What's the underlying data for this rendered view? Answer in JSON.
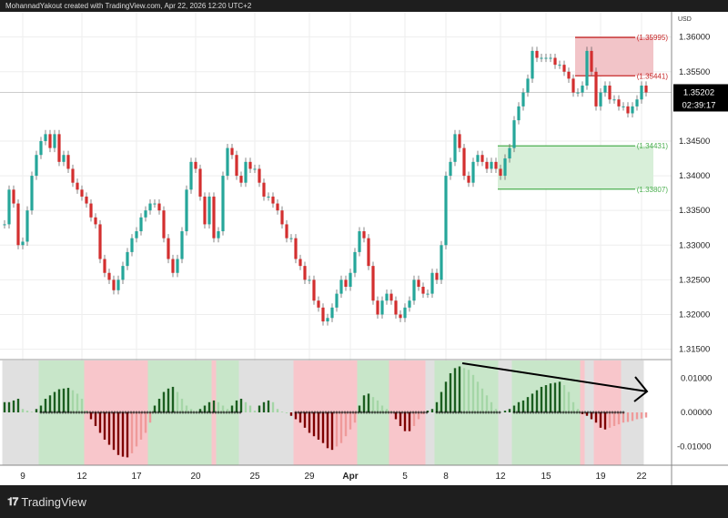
{
  "header": {
    "credit": "MohannadYakout created with TradingView.com, Apr 22, 2026 12:20 UTC+2"
  },
  "footer": {
    "brand": "TradingView",
    "logo_icon": "tradingview-logo-icon"
  },
  "chart_data": {
    "type": "candlestick",
    "currency": "USD",
    "price_axis": {
      "ticks": [
        "1.36000",
        "1.35500",
        "1.34500",
        "1.34000",
        "1.33500",
        "1.33000",
        "1.32500",
        "1.32000",
        "1.31500"
      ],
      "range": [
        1.3135,
        1.3614
      ]
    },
    "time_axis": {
      "ticks": [
        "9",
        "12",
        "17",
        "20",
        "25",
        "29",
        "Apr",
        "5",
        "8",
        "12",
        "15",
        "19",
        "22"
      ],
      "tick_bars": [
        4,
        17,
        29,
        42,
        55,
        67,
        76,
        88,
        97,
        109,
        119,
        131,
        140
      ]
    },
    "last_price": "1.35202",
    "countdown": "02:39:17",
    "colors": {
      "up": "#26a69a",
      "down": "#d32f2f",
      "zone_red": "#f8c6cb",
      "zone_green": "#c8e6c9",
      "zone_gray": "#e0e0e0"
    },
    "closes": [
      1.333,
      1.338,
      1.336,
      1.33,
      1.3305,
      1.335,
      1.34,
      1.343,
      1.345,
      1.346,
      1.344,
      1.346,
      1.342,
      1.343,
      1.341,
      1.339,
      1.338,
      1.337,
      1.336,
      1.334,
      1.333,
      1.328,
      1.326,
      1.325,
      1.3235,
      1.325,
      1.327,
      1.329,
      1.331,
      1.332,
      1.334,
      1.335,
      1.336,
      1.336,
      1.335,
      1.331,
      1.328,
      1.326,
      1.328,
      1.332,
      1.338,
      1.342,
      1.341,
      1.337,
      1.333,
      1.337,
      1.331,
      1.332,
      1.34,
      1.344,
      1.343,
      1.34,
      1.339,
      1.342,
      1.341,
      1.341,
      1.339,
      1.337,
      1.337,
      1.336,
      1.335,
      1.333,
      1.331,
      1.331,
      1.328,
      1.327,
      1.325,
      1.325,
      1.322,
      1.321,
      1.319,
      1.3195,
      1.321,
      1.323,
      1.325,
      1.324,
      1.326,
      1.329,
      1.332,
      1.331,
      1.327,
      1.322,
      1.32,
      1.322,
      1.323,
      1.322,
      1.32,
      1.3195,
      1.321,
      1.322,
      1.325,
      1.324,
      1.323,
      1.323,
      1.326,
      1.325,
      1.33,
      1.34,
      1.342,
      1.346,
      1.344,
      1.34,
      1.339,
      1.342,
      1.343,
      1.342,
      1.341,
      1.342,
      1.341,
      1.34,
      1.3425,
      1.344,
      1.348,
      1.35,
      1.352,
      1.354,
      1.358,
      1.357,
      1.357,
      1.357,
      1.357,
      1.356,
      1.356,
      1.355,
      1.354,
      1.352,
      1.352,
      1.353,
      1.358,
      1.355,
      1.35,
      1.352,
      1.353,
      1.351,
      1.351,
      1.35,
      1.35,
      1.349,
      1.35,
      1.351,
      1.353,
      1.35202
    ],
    "zones": [
      {
        "name": "supply",
        "top": 1.35995,
        "bottom": 1.35441,
        "top_label": "(1.35995)",
        "bottom_label": "(1.35441)",
        "start_bar": 126,
        "color": "#f2c4c8",
        "line": "#c62828"
      },
      {
        "name": "demand",
        "top": 1.34431,
        "bottom": 1.33807,
        "top_label": "(1.34431)",
        "bottom_label": "(1.33807)",
        "start_bar": 109,
        "color": "#d8efd9",
        "line": "#4caf50"
      }
    ],
    "oscillator": {
      "ticks": [
        "0.01000",
        "0.00000",
        "-0.01000"
      ],
      "range": [
        -0.0155,
        0.0155
      ],
      "colors": {
        "pos_up": "#1b5e20",
        "pos_down": "#a5d6a7",
        "neg_down": "#7f0000",
        "neg_up": "#ef9a9a",
        "cross": "#000000"
      },
      "values": [
        0.003,
        0.003,
        0.0035,
        0.004,
        0.001,
        0.0005,
        0.0002,
        0.001,
        0.002,
        0.004,
        0.005,
        0.006,
        0.0068,
        0.007,
        0.0072,
        0.0065,
        0.0055,
        0.004,
        0.0005,
        -0.002,
        -0.004,
        -0.006,
        -0.008,
        -0.0095,
        -0.011,
        -0.0125,
        -0.013,
        -0.0132,
        -0.012,
        -0.01,
        -0.008,
        -0.006,
        -0.003,
        0.002,
        0.004,
        0.006,
        0.007,
        0.0075,
        0.006,
        0.004,
        0.002,
        0.001,
        0.0002,
        0.001,
        0.002,
        0.003,
        0.0035,
        0.003,
        0.002,
        0.001,
        0.002,
        0.0035,
        0.004,
        0.003,
        0.002,
        0.0005,
        0.002,
        0.003,
        0.0035,
        0.003,
        0.001,
        0.0002,
        0,
        -0.001,
        -0.002,
        -0.003,
        -0.0045,
        -0.006,
        -0.007,
        -0.008,
        -0.009,
        -0.0105,
        -0.011,
        -0.01,
        -0.009,
        -0.007,
        -0.005,
        -0.003,
        0.002,
        0.005,
        0.0055,
        0.0045,
        0.0035,
        0.002,
        0.001,
        0.0003,
        -0.002,
        -0.004,
        -0.0055,
        -0.0055,
        -0.004,
        -0.002,
        -0.0005,
        0.0005,
        0.001,
        0.003,
        0.006,
        0.009,
        0.0115,
        0.013,
        0.0135,
        0.013,
        0.0125,
        0.011,
        0.009,
        0.007,
        0.005,
        0.003,
        0.001,
        0.0002,
        0.0005,
        0.001,
        0.002,
        0.003,
        0.0035,
        0.0045,
        0.0055,
        0.0065,
        0.0075,
        0.008,
        0.0085,
        0.0087,
        0.009,
        0.008,
        0.006,
        0.003,
        0.001,
        -0.0005,
        -0.001,
        -0.002,
        -0.003,
        -0.0045,
        -0.005,
        -0.0045,
        -0.004,
        -0.0035,
        -0.003,
        -0.0028,
        -0.0025,
        -0.002,
        -0.0018,
        -0.0015
      ],
      "background": [
        [
          "gray",
          0,
          8
        ],
        [
          "green",
          8,
          18
        ],
        [
          "red",
          18,
          32
        ],
        [
          "green",
          32,
          46
        ],
        [
          "red",
          46,
          47
        ],
        [
          "green",
          47,
          52
        ],
        [
          "gray",
          52,
          64
        ],
        [
          "red",
          64,
          78
        ],
        [
          "green",
          78,
          85
        ],
        [
          "red",
          85,
          93
        ],
        [
          "gray",
          93,
          95
        ],
        [
          "green",
          95,
          109
        ],
        [
          "gray",
          109,
          112
        ],
        [
          "green",
          112,
          127
        ],
        [
          "red",
          127,
          128
        ],
        [
          "gray",
          128,
          130
        ],
        [
          "red",
          130,
          136
        ],
        [
          "gray",
          136,
          141
        ]
      ],
      "cross_ranges": [
        [
          8,
          52
        ],
        [
          64,
          93
        ],
        [
          95,
          109
        ],
        [
          112,
          136
        ]
      ],
      "annotation": "trend-arrow-down"
    }
  }
}
